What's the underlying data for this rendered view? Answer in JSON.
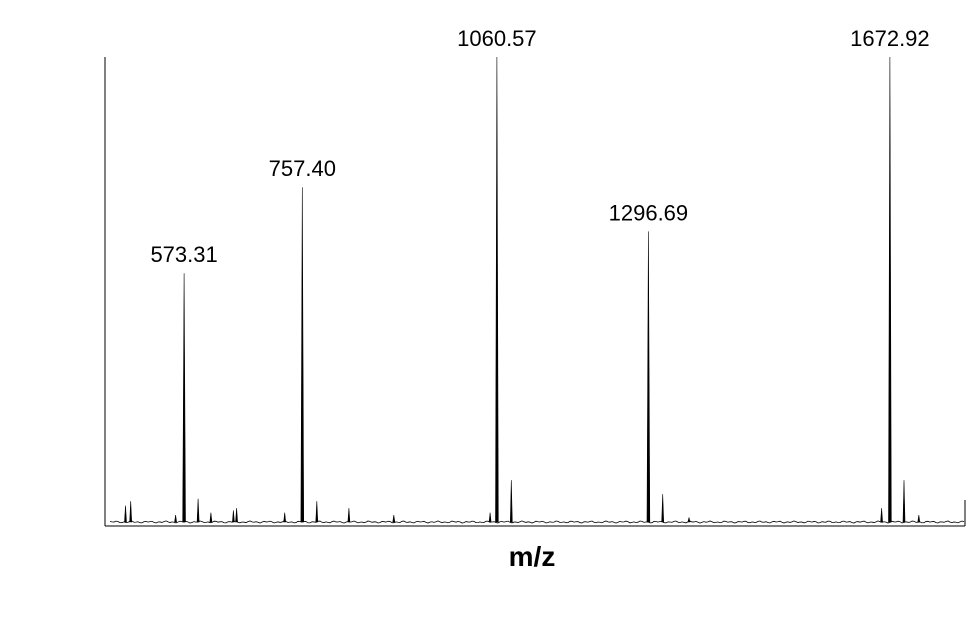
{
  "chart_data": {
    "type": "line",
    "title": "",
    "xlabel": "m/z",
    "ylabel": "",
    "xlim": [
      450,
      1790
    ],
    "ylim": [
      0,
      100
    ],
    "grid": false,
    "legend": "none",
    "line_color": "#000000",
    "labeled_peaks": [
      {
        "label": "573.31",
        "x": 573.31,
        "y": 53.5
      },
      {
        "label": "757.40",
        "x": 757.4,
        "y": 72.0
      },
      {
        "label": "1060.57",
        "x": 1060.57,
        "y": 100.0
      },
      {
        "label": "1296.69",
        "x": 1296.69,
        "y": 62.5
      },
      {
        "label": "1672.92",
        "x": 1672.92,
        "y": 100.0
      }
    ],
    "minor_peaks": [
      {
        "x": 482,
        "y": 3.5
      },
      {
        "x": 490,
        "y": 4.5
      },
      {
        "x": 560,
        "y": 1.5
      },
      {
        "x": 595,
        "y": 5.0
      },
      {
        "x": 615,
        "y": 2.0
      },
      {
        "x": 650,
        "y": 2.5
      },
      {
        "x": 655,
        "y": 3.0
      },
      {
        "x": 730,
        "y": 2.0
      },
      {
        "x": 780,
        "y": 4.5
      },
      {
        "x": 830,
        "y": 3.0
      },
      {
        "x": 900,
        "y": 1.5
      },
      {
        "x": 1050,
        "y": 2.0
      },
      {
        "x": 1083,
        "y": 9.0
      },
      {
        "x": 1319,
        "y": 6.0
      },
      {
        "x": 1360,
        "y": 1.0
      },
      {
        "x": 1660,
        "y": 3.0
      },
      {
        "x": 1695,
        "y": 9.0
      },
      {
        "x": 1718,
        "y": 1.5
      }
    ]
  }
}
